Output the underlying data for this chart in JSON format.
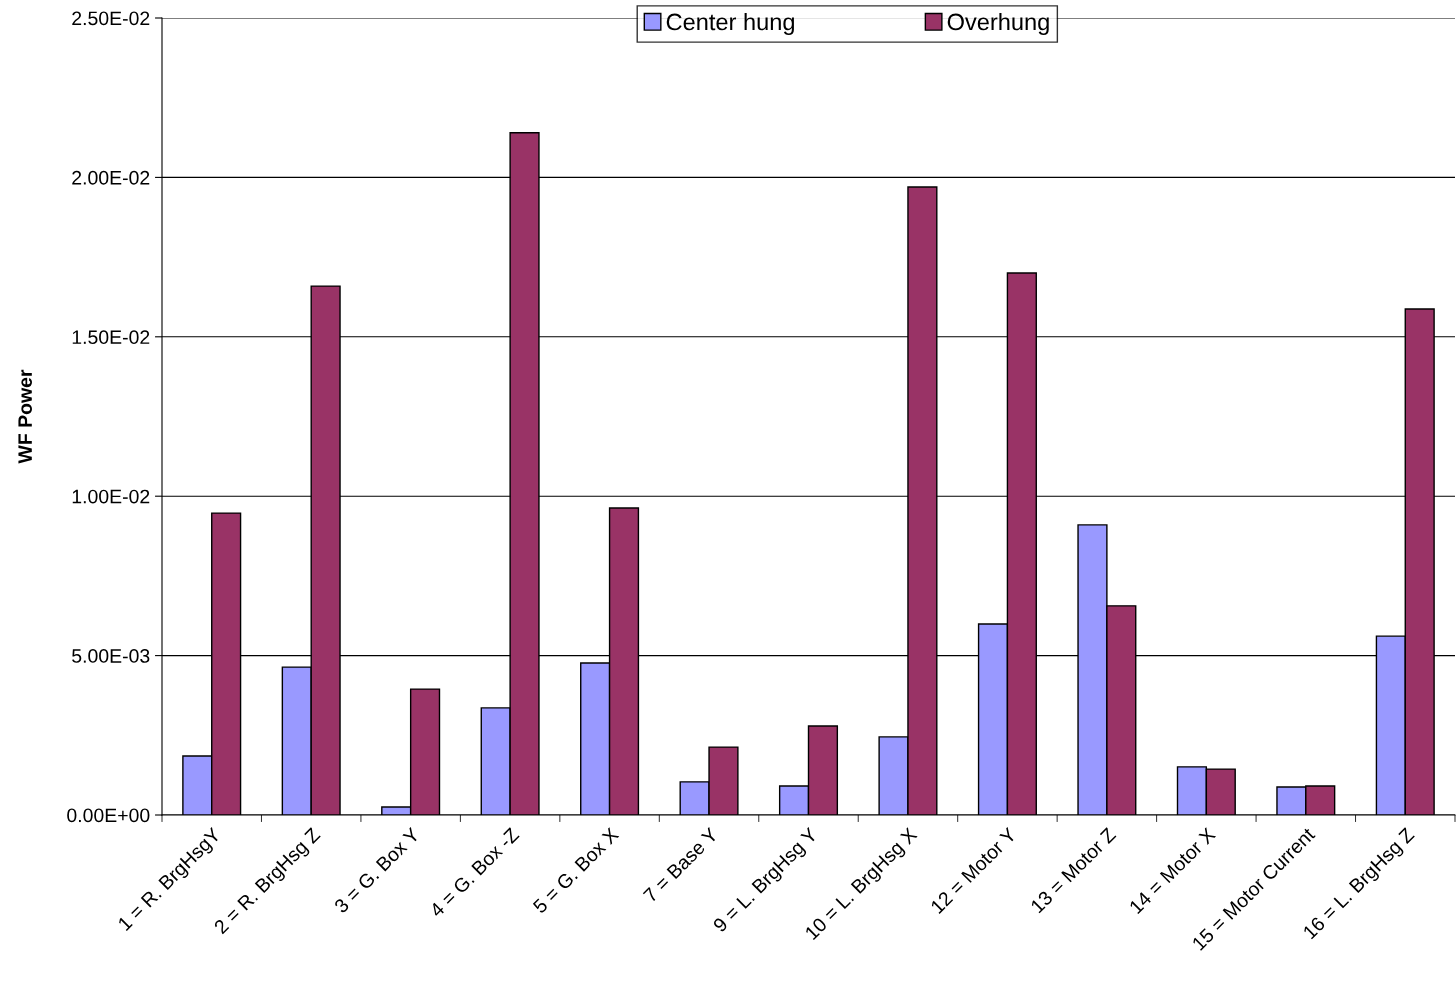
{
  "chart_data": {
    "type": "bar",
    "ylabel": "WF Power",
    "categories": [
      "1 = R. BrgHsgY",
      "2 = R. BrgHsg Z",
      "3 = G. Box Y",
      "4 = G. Box -Z",
      "5 = G. Box X",
      "7 = Base Y",
      "9 = L. BrgHsg Y",
      "10 = L. BrgHsg X",
      "12 = Motor Y",
      "13 = Motor Z",
      "14 = Motor X",
      "15 = Motor Current",
      "16 = L. BrgHsg Z"
    ],
    "series": [
      {
        "name": "Center hung",
        "color": "#9999ff",
        "values": [
          0.00185,
          0.00464,
          0.00025,
          0.00336,
          0.00477,
          0.00104,
          0.00091,
          0.00245,
          0.00599,
          0.0091,
          0.00151,
          0.00088,
          0.00561
        ]
      },
      {
        "name": "Overhung",
        "color": "#993366",
        "values": [
          0.00947,
          0.01659,
          0.00395,
          0.0214,
          0.00963,
          0.00213,
          0.00279,
          0.0197,
          0.017,
          0.00656,
          0.00144,
          0.00091,
          0.01587
        ]
      }
    ],
    "ylim": [
      0,
      0.025
    ],
    "yticks": [
      {
        "value": 0,
        "label": "0.00E+00"
      },
      {
        "value": 0.005,
        "label": "5.00E-03"
      },
      {
        "value": 0.01,
        "label": "1.00E-02"
      },
      {
        "value": 0.015,
        "label": "1.50E-02"
      },
      {
        "value": 0.02,
        "label": "2.00E-02"
      },
      {
        "value": 0.025,
        "label": "2.50E-02"
      }
    ],
    "grid": "y",
    "legend": "top"
  }
}
